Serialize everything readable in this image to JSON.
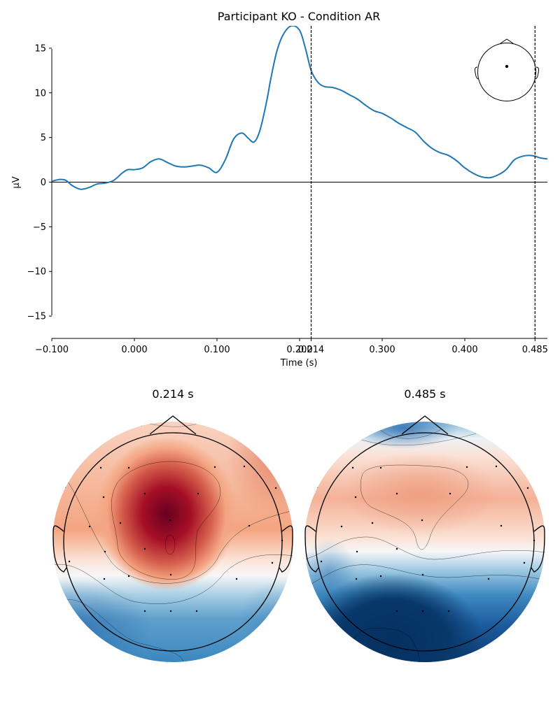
{
  "chart_data": [
    {
      "type": "line",
      "title": "Participant KO - Condition AR",
      "xlabel": "Time (s)",
      "ylabel": "µV",
      "xlim": [
        -0.1,
        0.5
      ],
      "ylim": [
        -17.5,
        17.5
      ],
      "xticks": [
        -0.1,
        0.0,
        0.1,
        0.2,
        0.214,
        0.3,
        0.4,
        0.485
      ],
      "xtick_labels": [
        "−0.100",
        "0.000",
        "0.100",
        "0.200",
        "0.214",
        "0.300",
        "0.400",
        "0.485"
      ],
      "yticks": [
        -15,
        -10,
        -5,
        0,
        5,
        10,
        15
      ],
      "ytick_labels": [
        "−15",
        "−10",
        "−5",
        "0",
        "5",
        "10",
        "15"
      ],
      "line_color": "#1f77b4",
      "zero_line": true,
      "vertical_markers": [
        0.214,
        0.485
      ],
      "sensor_inset": "head outline with single channel dot",
      "series": [
        {
          "x": [
            -0.1,
            -0.09,
            -0.083,
            -0.075,
            -0.065,
            -0.055,
            -0.045,
            -0.035,
            -0.025,
            -0.015,
            -0.008,
            0.0,
            0.01,
            0.02,
            0.03,
            0.04,
            0.05,
            0.06,
            0.07,
            0.08,
            0.09,
            0.1,
            0.11,
            0.12,
            0.13,
            0.138,
            0.145,
            0.152,
            0.16,
            0.165,
            0.172,
            0.18,
            0.19,
            0.2,
            0.207,
            0.214,
            0.222,
            0.23,
            0.24,
            0.25,
            0.26,
            0.27,
            0.28,
            0.29,
            0.3,
            0.31,
            0.32,
            0.33,
            0.34,
            0.35,
            0.36,
            0.37,
            0.38,
            0.39,
            0.4,
            0.41,
            0.42,
            0.43,
            0.44,
            0.45,
            0.46,
            0.47,
            0.478,
            0.485,
            0.492,
            0.5
          ],
          "y": [
            0.1,
            0.3,
            0.2,
            -0.4,
            -0.8,
            -0.6,
            -0.2,
            -0.1,
            0.2,
            1.0,
            1.4,
            1.4,
            1.6,
            2.3,
            2.6,
            2.2,
            1.8,
            1.7,
            1.8,
            1.9,
            1.6,
            1.1,
            2.5,
            4.8,
            5.5,
            4.9,
            4.5,
            5.8,
            9.0,
            11.5,
            14.5,
            16.5,
            17.5,
            17.0,
            15.0,
            12.5,
            11.2,
            10.7,
            10.6,
            10.3,
            9.8,
            9.3,
            8.6,
            8.0,
            7.7,
            7.2,
            6.6,
            6.1,
            5.6,
            4.6,
            3.8,
            3.3,
            3.0,
            2.4,
            1.6,
            1.0,
            0.6,
            0.5,
            0.8,
            1.4,
            2.5,
            2.9,
            3.0,
            2.9,
            2.7,
            2.6
          ]
        }
      ]
    },
    {
      "type": "heatmap",
      "title": "0.214 s",
      "colormap": "RdBu_r",
      "description_values": "topographic scalp map, strong positive (red) central-frontal, negative (blue) posterior"
    },
    {
      "type": "heatmap",
      "title": "0.485 s",
      "colormap": "RdBu_r",
      "description_values": "topographic scalp map, mild positive (light red) frontal-central, strong negative (blue) posterior"
    }
  ]
}
